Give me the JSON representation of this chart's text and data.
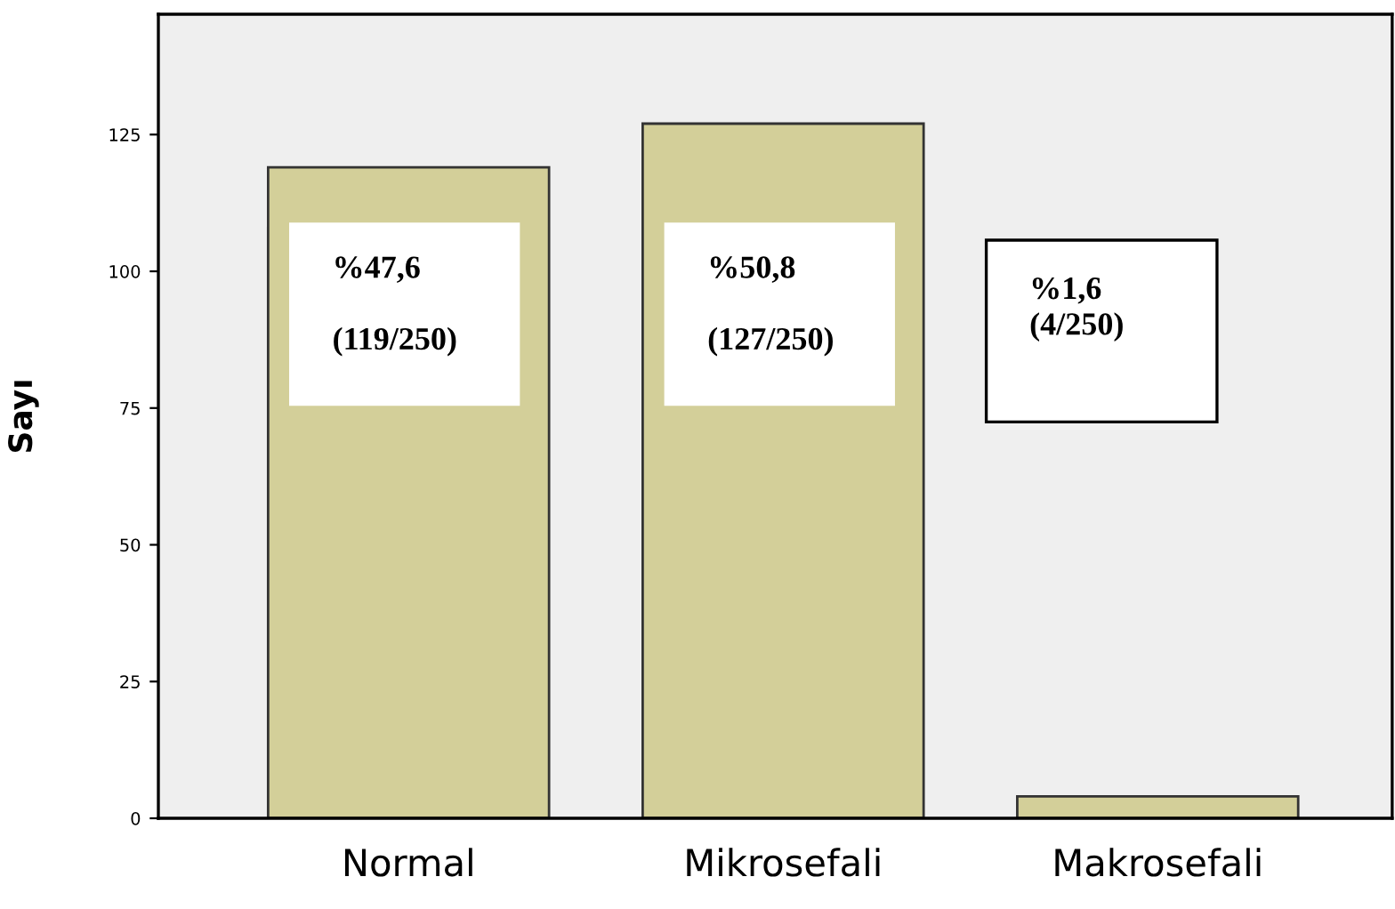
{
  "chart_data": {
    "type": "bar",
    "ylabel": "Sayı",
    "categories": [
      "Normal",
      "Mikrosefali",
      "Makrosefali"
    ],
    "values": [
      119,
      127,
      4
    ],
    "color": "#d3cf99",
    "ylim": [
      0,
      147
    ],
    "yticks": [
      0,
      25,
      50,
      75,
      100,
      125
    ],
    "grid": false,
    "annotations": [
      "%47,6\n\n(119/250)",
      "%50,8\n\n(127/250)",
      "%1,6\n(4/250)"
    ]
  }
}
